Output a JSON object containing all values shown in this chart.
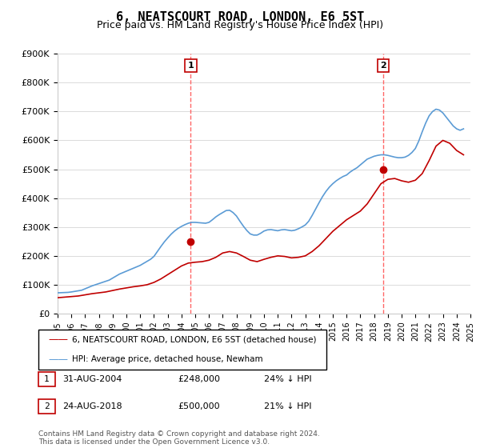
{
  "title": "6, NEATSCOURT ROAD, LONDON, E6 5ST",
  "subtitle": "Price paid vs. HM Land Registry's House Price Index (HPI)",
  "title_fontsize": 11,
  "subtitle_fontsize": 9,
  "ylabel": "",
  "xlabel": "",
  "ylim": [
    0,
    900000
  ],
  "yticks": [
    0,
    100000,
    200000,
    300000,
    400000,
    500000,
    600000,
    700000,
    800000,
    900000
  ],
  "ytick_labels": [
    "£0",
    "£100K",
    "£200K",
    "£300K",
    "£400K",
    "£500K",
    "£600K",
    "£700K",
    "£800K",
    "£900K"
  ],
  "x_start_year": 1995,
  "x_end_year": 2025,
  "hpi_color": "#5b9bd5",
  "price_color": "#c00000",
  "marker_color": "#c00000",
  "vline_color": "#ff6666",
  "legend_label_red": "6, NEATSCOURT ROAD, LONDON, E6 5ST (detached house)",
  "legend_label_blue": "HPI: Average price, detached house, Newham",
  "transaction1_label": "1",
  "transaction1_date": "31-AUG-2004",
  "transaction1_price": "£248,000",
  "transaction1_hpi": "24% ↓ HPI",
  "transaction1_year": 2004.67,
  "transaction1_value": 248000,
  "transaction2_label": "2",
  "transaction2_date": "24-AUG-2018",
  "transaction2_price": "£500,000",
  "transaction2_hpi": "21% ↓ HPI",
  "transaction2_year": 2018.67,
  "transaction2_value": 500000,
  "footnote": "Contains HM Land Registry data © Crown copyright and database right 2024.\nThis data is licensed under the Open Government Licence v3.0.",
  "hpi_data_x": [
    1995.0,
    1995.25,
    1995.5,
    1995.75,
    1996.0,
    1996.25,
    1996.5,
    1996.75,
    1997.0,
    1997.25,
    1997.5,
    1997.75,
    1998.0,
    1998.25,
    1998.5,
    1998.75,
    1999.0,
    1999.25,
    1999.5,
    1999.75,
    2000.0,
    2000.25,
    2000.5,
    2000.75,
    2001.0,
    2001.25,
    2001.5,
    2001.75,
    2002.0,
    2002.25,
    2002.5,
    2002.75,
    2003.0,
    2003.25,
    2003.5,
    2003.75,
    2004.0,
    2004.25,
    2004.5,
    2004.75,
    2005.0,
    2005.25,
    2005.5,
    2005.75,
    2006.0,
    2006.25,
    2006.5,
    2006.75,
    2007.0,
    2007.25,
    2007.5,
    2007.75,
    2008.0,
    2008.25,
    2008.5,
    2008.75,
    2009.0,
    2009.25,
    2009.5,
    2009.75,
    2010.0,
    2010.25,
    2010.5,
    2010.75,
    2011.0,
    2011.25,
    2011.5,
    2011.75,
    2012.0,
    2012.25,
    2012.5,
    2012.75,
    2013.0,
    2013.25,
    2013.5,
    2013.75,
    2014.0,
    2014.25,
    2014.5,
    2014.75,
    2015.0,
    2015.25,
    2015.5,
    2015.75,
    2016.0,
    2016.25,
    2016.5,
    2016.75,
    2017.0,
    2017.25,
    2017.5,
    2017.75,
    2018.0,
    2018.25,
    2018.5,
    2018.75,
    2019.0,
    2019.25,
    2019.5,
    2019.75,
    2020.0,
    2020.25,
    2020.5,
    2020.75,
    2021.0,
    2021.25,
    2021.5,
    2021.75,
    2022.0,
    2022.25,
    2022.5,
    2022.75,
    2023.0,
    2023.25,
    2023.5,
    2023.75,
    2024.0,
    2024.25,
    2024.5
  ],
  "hpi_data_y": [
    72000,
    72500,
    73000,
    73500,
    75000,
    77000,
    79000,
    81000,
    86000,
    91000,
    96000,
    100000,
    104000,
    108000,
    112000,
    116000,
    123000,
    130000,
    137000,
    142000,
    147000,
    152000,
    157000,
    162000,
    167000,
    174000,
    181000,
    188000,
    198000,
    215000,
    232000,
    248000,
    262000,
    275000,
    286000,
    295000,
    302000,
    308000,
    313000,
    316000,
    316000,
    315000,
    314000,
    313000,
    316000,
    325000,
    335000,
    343000,
    350000,
    357000,
    358000,
    350000,
    338000,
    320000,
    303000,
    288000,
    276000,
    272000,
    272000,
    278000,
    286000,
    290000,
    291000,
    289000,
    287000,
    290000,
    291000,
    289000,
    287000,
    289000,
    294000,
    300000,
    307000,
    320000,
    340000,
    362000,
    384000,
    405000,
    423000,
    438000,
    450000,
    460000,
    468000,
    475000,
    480000,
    490000,
    498000,
    505000,
    515000,
    525000,
    535000,
    540000,
    545000,
    548000,
    550000,
    550000,
    548000,
    545000,
    542000,
    540000,
    540000,
    542000,
    548000,
    558000,
    572000,
    598000,
    630000,
    660000,
    685000,
    700000,
    708000,
    705000,
    695000,
    680000,
    665000,
    650000,
    640000,
    635000,
    640000
  ],
  "price_data_x": [
    1995.0,
    1995.5,
    1996.0,
    1996.5,
    1997.0,
    1997.5,
    1998.0,
    1998.5,
    1999.0,
    1999.5,
    2000.0,
    2000.5,
    2001.0,
    2001.5,
    2002.0,
    2002.5,
    2003.0,
    2003.5,
    2004.0,
    2004.5,
    2005.0,
    2005.5,
    2006.0,
    2006.5,
    2007.0,
    2007.5,
    2008.0,
    2008.5,
    2009.0,
    2009.5,
    2010.0,
    2010.5,
    2011.0,
    2011.5,
    2012.0,
    2012.5,
    2013.0,
    2013.5,
    2014.0,
    2014.5,
    2015.0,
    2015.5,
    2016.0,
    2016.5,
    2017.0,
    2017.5,
    2018.0,
    2018.5,
    2019.0,
    2019.5,
    2020.0,
    2020.5,
    2021.0,
    2021.5,
    2022.0,
    2022.5,
    2023.0,
    2023.5,
    2024.0,
    2024.5
  ],
  "price_data_y": [
    55000,
    57000,
    59000,
    61000,
    65000,
    69000,
    72000,
    75000,
    80000,
    85000,
    89000,
    93000,
    96000,
    100000,
    108000,
    120000,
    135000,
    150000,
    165000,
    175000,
    178000,
    180000,
    185000,
    195000,
    210000,
    215000,
    210000,
    198000,
    185000,
    180000,
    188000,
    195000,
    200000,
    198000,
    193000,
    195000,
    200000,
    215000,
    235000,
    260000,
    285000,
    305000,
    325000,
    340000,
    355000,
    380000,
    415000,
    450000,
    465000,
    468000,
    460000,
    455000,
    462000,
    485000,
    530000,
    580000,
    600000,
    590000,
    565000,
    550000
  ]
}
